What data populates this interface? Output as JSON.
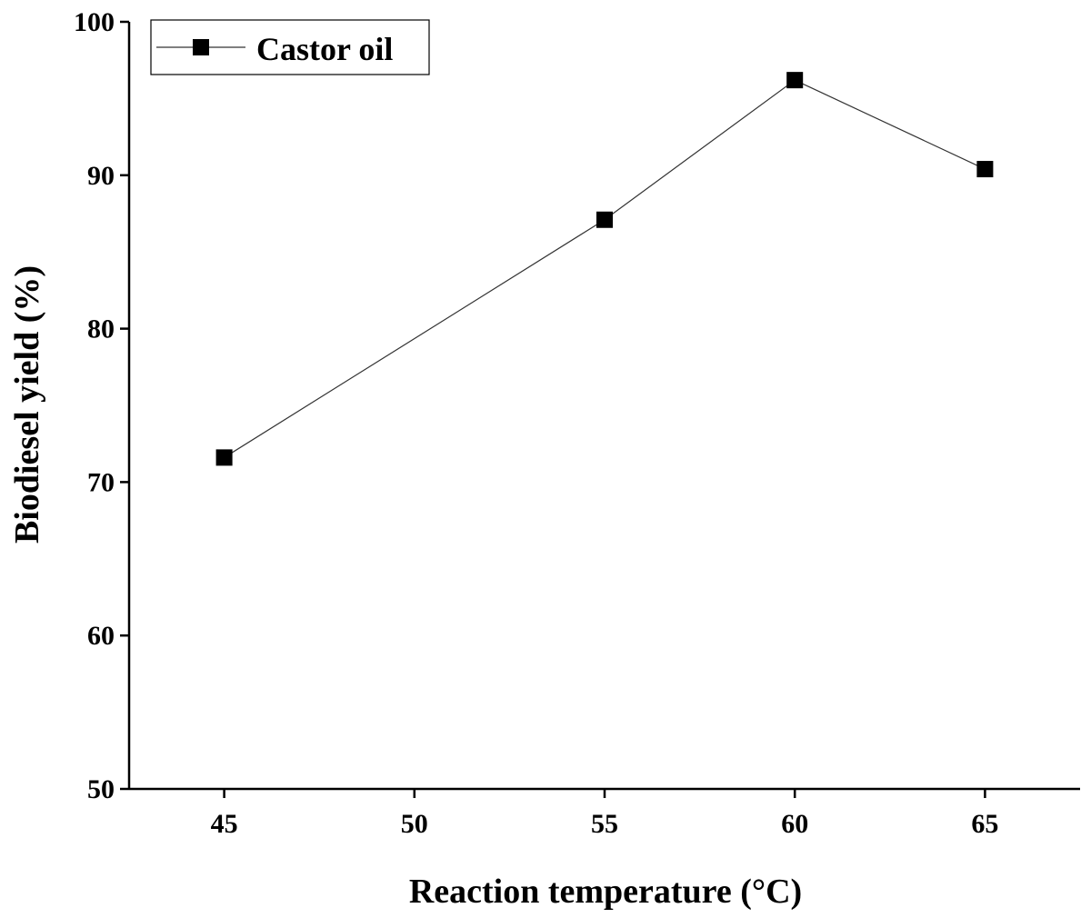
{
  "chart_data": {
    "type": "line",
    "xlabel": "Reaction temperature (°C)",
    "ylabel": "Biodiesel yield (%)",
    "xlim": [
      42.5,
      67.5
    ],
    "ylim": [
      50,
      100
    ],
    "xticks": [
      45,
      50,
      55,
      60,
      65
    ],
    "yticks": [
      50,
      60,
      70,
      80,
      90,
      100
    ],
    "grid": false,
    "legend_position": "top-left",
    "series": [
      {
        "name": "Castor oil",
        "color": "#000000",
        "marker": "square",
        "x": [
          45,
          55,
          60,
          65
        ],
        "y": [
          71.6,
          87.1,
          96.2,
          90.4
        ]
      }
    ]
  }
}
